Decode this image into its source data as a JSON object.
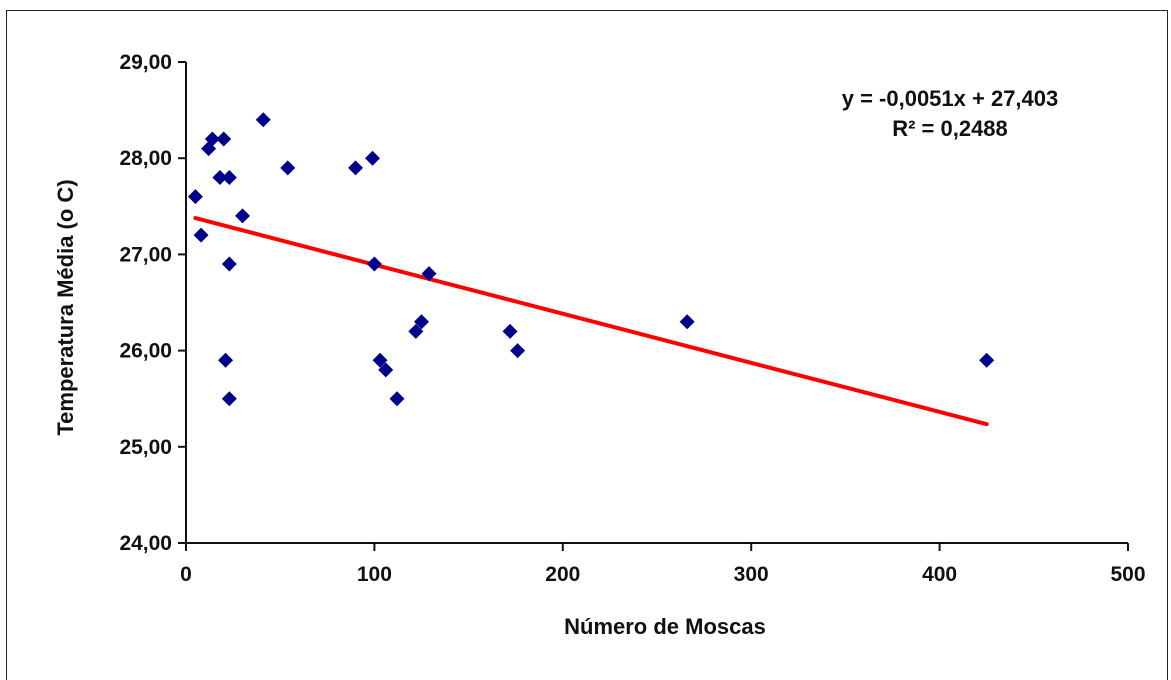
{
  "chart_data": {
    "type": "scatter",
    "xlabel": "Número de Moscas",
    "ylabel": "Temperatura Média (o C)",
    "xlim": [
      0,
      500
    ],
    "ylim": [
      24,
      29
    ],
    "x_ticks": [
      "0",
      "100",
      "200",
      "300",
      "400",
      "500"
    ],
    "y_ticks": [
      "24,00",
      "25,00",
      "26,00",
      "27,00",
      "28,00",
      "29,00"
    ],
    "marker_color": "#00008B",
    "trendline_color": "#FF0000",
    "points": [
      {
        "x": 5,
        "y": 27.6
      },
      {
        "x": 8,
        "y": 27.2
      },
      {
        "x": 12,
        "y": 28.1
      },
      {
        "x": 14,
        "y": 28.2
      },
      {
        "x": 18,
        "y": 27.8
      },
      {
        "x": 20,
        "y": 28.2
      },
      {
        "x": 21,
        "y": 25.9
      },
      {
        "x": 23,
        "y": 27.8
      },
      {
        "x": 23,
        "y": 26.9
      },
      {
        "x": 23,
        "y": 25.5
      },
      {
        "x": 30,
        "y": 27.4
      },
      {
        "x": 41,
        "y": 28.4
      },
      {
        "x": 54,
        "y": 27.9
      },
      {
        "x": 90,
        "y": 27.9
      },
      {
        "x": 99,
        "y": 28.0
      },
      {
        "x": 100,
        "y": 26.9
      },
      {
        "x": 103,
        "y": 25.9
      },
      {
        "x": 106,
        "y": 25.8
      },
      {
        "x": 112,
        "y": 25.5
      },
      {
        "x": 122,
        "y": 26.2
      },
      {
        "x": 125,
        "y": 26.3
      },
      {
        "x": 129,
        "y": 26.8
      },
      {
        "x": 172,
        "y": 26.2
      },
      {
        "x": 176,
        "y": 26.0
      },
      {
        "x": 266,
        "y": 26.3
      },
      {
        "x": 425,
        "y": 25.9
      }
    ],
    "trendline": {
      "slope": -0.0051,
      "intercept": 27.403,
      "x_range": [
        5,
        425
      ]
    },
    "annotations": {
      "equation": "y = -0,0051x + 27,403",
      "r_squared": "R² = 0,2488"
    }
  }
}
